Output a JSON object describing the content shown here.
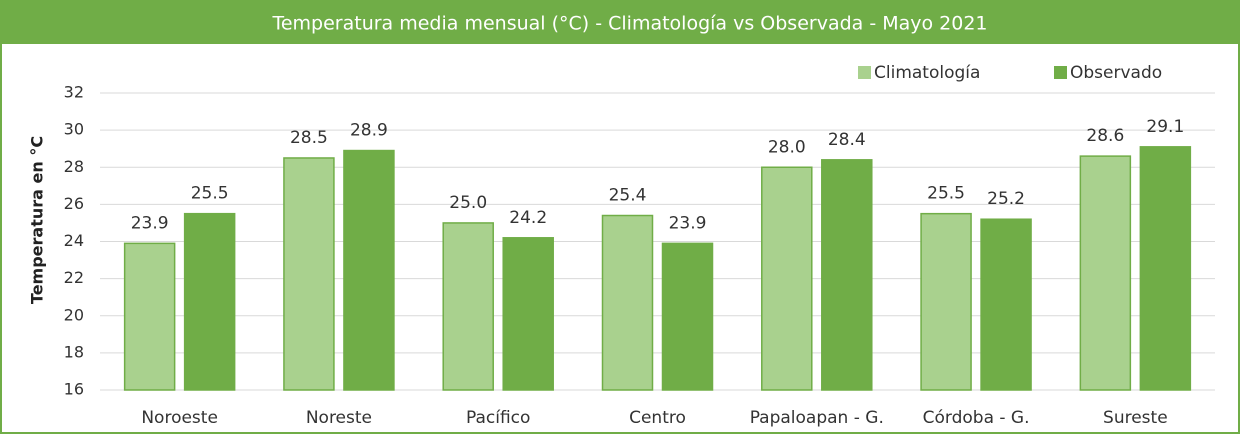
{
  "chart_data": {
    "type": "bar",
    "title": "Temperatura media mensual (°C)  -   Climatología vs Observada   - Mayo 2021",
    "y_label": "Temperatura en °C",
    "categories": [
      "Noroeste",
      "Noreste",
      "Pacífico",
      "Centro",
      "Papaloapan - G.",
      "Córdoba - G.",
      "Sureste"
    ],
    "series": [
      {
        "name": "Climatología",
        "color": "#a9d18e",
        "values": [
          23.9,
          28.5,
          25.0,
          25.4,
          28.0,
          25.5,
          28.6
        ],
        "value_labels": [
          "23.9",
          "28.5",
          "25.0",
          "25.4",
          "28.0",
          "25.5",
          "28.6"
        ]
      },
      {
        "name": "Observado",
        "color": "#70ad47",
        "values": [
          25.5,
          28.9,
          24.2,
          23.9,
          28.4,
          25.2,
          29.1
        ],
        "value_labels": [
          "25.5",
          "28.9",
          "24.2",
          "23.9",
          "28.4",
          "25.2",
          "29.1"
        ]
      }
    ],
    "ylim": [
      16,
      32
    ],
    "yticks": [
      16,
      18,
      20,
      22,
      24,
      26,
      28,
      30,
      32
    ],
    "grid": true,
    "legend": "top-right"
  }
}
